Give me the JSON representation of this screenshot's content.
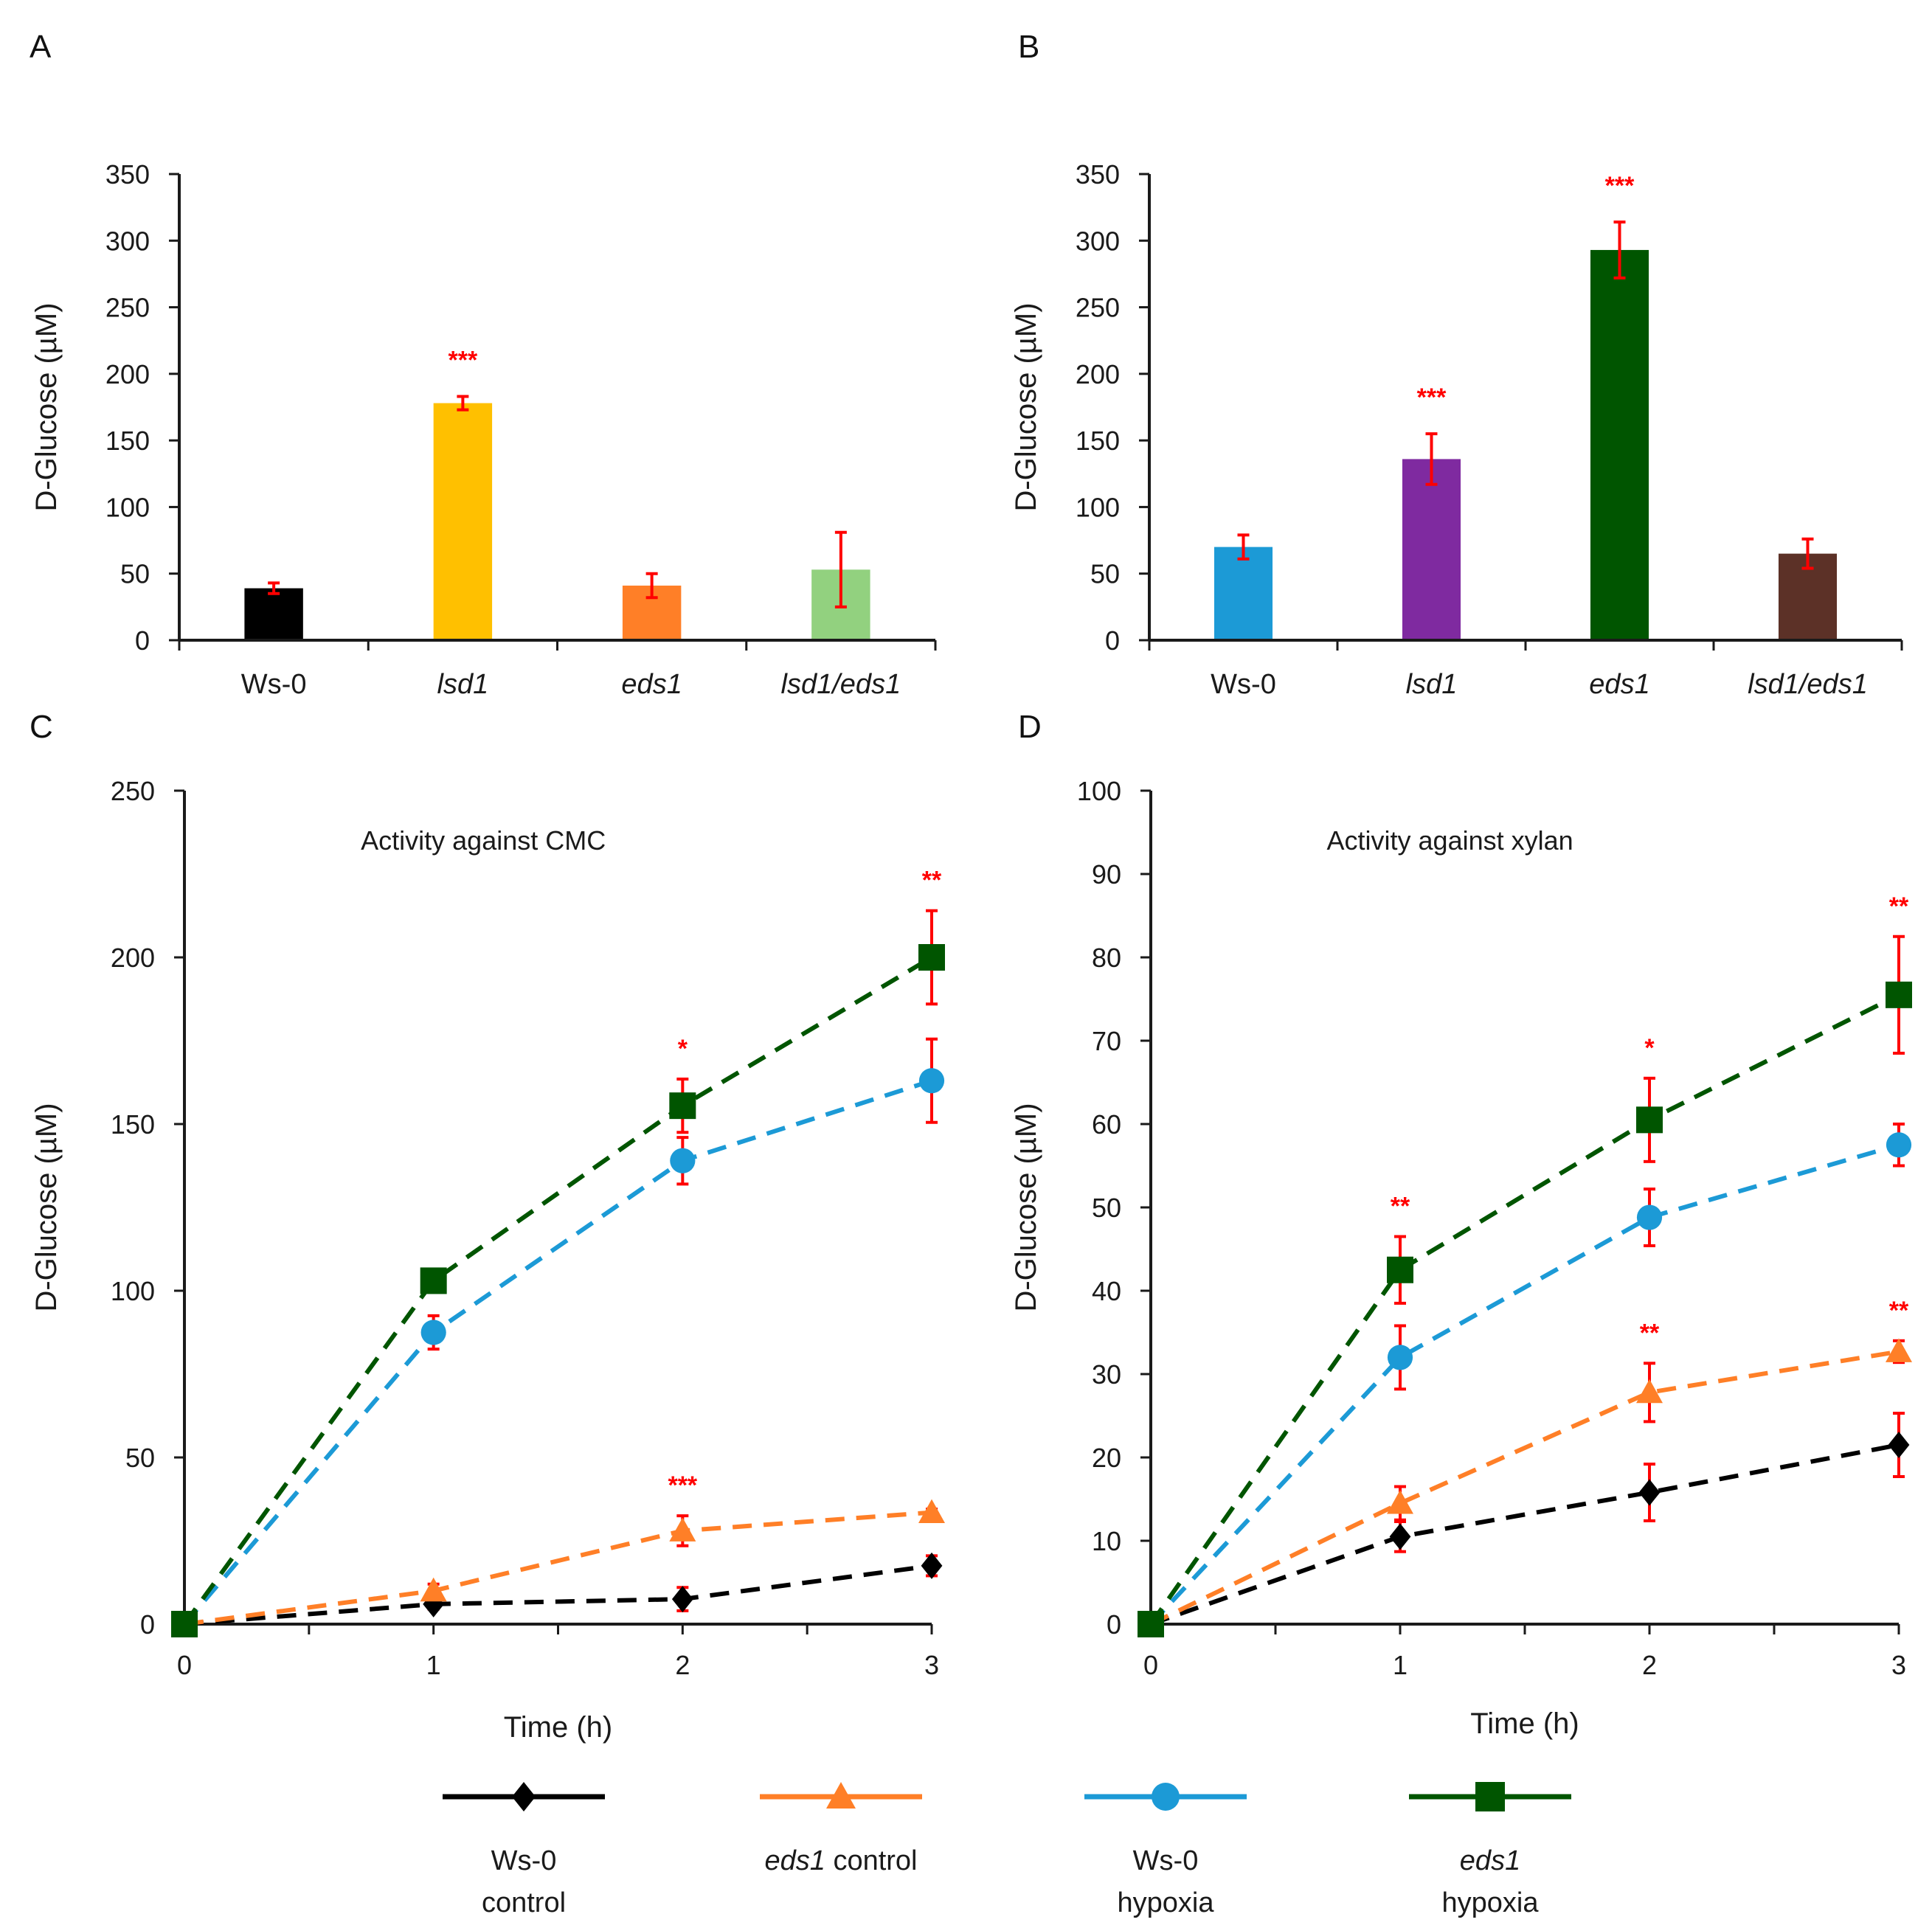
{
  "colors": {
    "error_bar": "#ff0000",
    "axis": "#1a1a1a",
    "significance": "#ff0000"
  },
  "chart_data": [
    {
      "panel": "A",
      "type": "bar",
      "title": "",
      "xlabel": "",
      "ylabel": "D-Glucose (µM)",
      "ylim": [
        0,
        350
      ],
      "yticks": [
        0,
        50,
        100,
        150,
        200,
        250,
        300,
        350
      ],
      "categories": [
        "Ws-0",
        "lsd1",
        "eds1",
        "lsd1/eds1"
      ],
      "category_italic": [
        false,
        true,
        true,
        true
      ],
      "values": [
        39,
        178,
        41,
        53
      ],
      "errors": [
        4,
        5,
        9,
        28
      ],
      "colors": [
        "#000000",
        "#ffc000",
        "#ff7f27",
        "#92d17f"
      ],
      "significance": [
        "",
        "***",
        "",
        ""
      ]
    },
    {
      "panel": "B",
      "type": "bar",
      "title": "",
      "xlabel": "",
      "ylabel": "D-Glucose (µM)",
      "ylim": [
        0,
        350
      ],
      "yticks": [
        0,
        50,
        100,
        150,
        200,
        250,
        300,
        350
      ],
      "categories": [
        "Ws-0",
        "lsd1",
        "eds1",
        "lsd1/eds1"
      ],
      "category_italic": [
        false,
        true,
        true,
        true
      ],
      "values": [
        70,
        136,
        293,
        65
      ],
      "errors": [
        9,
        19,
        21,
        11
      ],
      "colors": [
        "#1c9ad6",
        "#7f2aa0",
        "#005500",
        "#5c3127"
      ],
      "significance": [
        "",
        "***",
        "***",
        ""
      ]
    },
    {
      "panel": "C",
      "type": "line",
      "title": "Activity against CMC",
      "xlabel": "Time (h)",
      "ylabel": "D-Glucose (µM)",
      "xlim": [
        0,
        3
      ],
      "ylim": [
        0,
        250
      ],
      "xticks": [
        0,
        1,
        2,
        3
      ],
      "yticks": [
        0,
        50,
        100,
        150,
        200,
        250
      ],
      "series": [
        {
          "name": "Ws-0 control",
          "color": "#000000",
          "marker": "diamond",
          "x": [
            0,
            1,
            2,
            3
          ],
          "values": [
            0,
            6,
            7.5,
            17.5
          ],
          "errors": [
            0,
            1.5,
            3.5,
            3
          ],
          "significance": [
            "",
            "",
            "",
            ""
          ]
        },
        {
          "name": "eds1 control",
          "color": "#ff7f27",
          "marker": "triangle",
          "x": [
            0,
            1,
            2,
            3
          ],
          "values": [
            0,
            10,
            28,
            33.5
          ],
          "errors": [
            0,
            2,
            4.5,
            1
          ],
          "significance": [
            "",
            "",
            "***",
            ""
          ]
        },
        {
          "name": "Ws-0 hypoxia",
          "color": "#1c9ad6",
          "marker": "circle",
          "x": [
            0,
            1,
            2,
            3
          ],
          "values": [
            0,
            87.5,
            139,
            163
          ],
          "errors": [
            0,
            5,
            7,
            12.5
          ],
          "significance": [
            "",
            "",
            "",
            ""
          ]
        },
        {
          "name": "eds1 hypoxia",
          "color": "#005500",
          "marker": "square",
          "x": [
            0,
            1,
            2,
            3
          ],
          "values": [
            0,
            103,
            155.5,
            200
          ],
          "errors": [
            0,
            3,
            8,
            14
          ],
          "significance": [
            "",
            "",
            "*",
            "**"
          ]
        }
      ]
    },
    {
      "panel": "D",
      "type": "line",
      "title": "Activity against xylan",
      "xlabel": "Time (h)",
      "ylabel": "D-Glucose (µM)",
      "xlim": [
        0,
        3
      ],
      "ylim": [
        0,
        100
      ],
      "xticks": [
        0,
        1,
        2,
        3
      ],
      "yticks": [
        0,
        10,
        20,
        30,
        40,
        50,
        60,
        70,
        80,
        90,
        100
      ],
      "series": [
        {
          "name": "Ws-0 control",
          "color": "#000000",
          "marker": "diamond",
          "x": [
            0,
            1,
            2,
            3
          ],
          "values": [
            0,
            10.5,
            15.8,
            21.5
          ],
          "errors": [
            0,
            1.8,
            3.4,
            3.8
          ],
          "significance": [
            "",
            "",
            "",
            ""
          ]
        },
        {
          "name": "eds1 control",
          "color": "#ff7f27",
          "marker": "triangle",
          "x": [
            0,
            1,
            2,
            3
          ],
          "values": [
            0,
            14.5,
            27.8,
            32.7
          ],
          "errors": [
            0,
            2,
            3.5,
            1.3
          ],
          "significance": [
            "",
            "",
            "**",
            "**"
          ]
        },
        {
          "name": "Ws-0 hypoxia",
          "color": "#1c9ad6",
          "marker": "circle",
          "x": [
            0,
            1,
            2,
            3
          ],
          "values": [
            0,
            32,
            48.8,
            57.5
          ],
          "errors": [
            0,
            3.8,
            3.4,
            2.5
          ],
          "significance": [
            "",
            "",
            "",
            ""
          ]
        },
        {
          "name": "eds1 hypoxia",
          "color": "#005500",
          "marker": "square",
          "x": [
            0,
            1,
            2,
            3
          ],
          "values": [
            0,
            42.5,
            60.5,
            75.5
          ],
          "errors": [
            0,
            4,
            5,
            7
          ],
          "significance": [
            "",
            "**",
            "*",
            "**"
          ]
        }
      ]
    }
  ],
  "legend": [
    {
      "line1": "Ws-0",
      "line1_italic_part": "",
      "line2": "control",
      "color": "#000000",
      "marker": "diamond"
    },
    {
      "line1": " control",
      "line1_italic_part": "eds1",
      "line2": "",
      "color": "#ff7f27",
      "marker": "triangle"
    },
    {
      "line1": "Ws-0",
      "line1_italic_part": "",
      "line2": "hypoxia",
      "color": "#1c9ad6",
      "marker": "circle"
    },
    {
      "line1": "",
      "line1_italic_part": "eds1",
      "line2": "hypoxia",
      "color": "#005500",
      "marker": "square"
    }
  ]
}
